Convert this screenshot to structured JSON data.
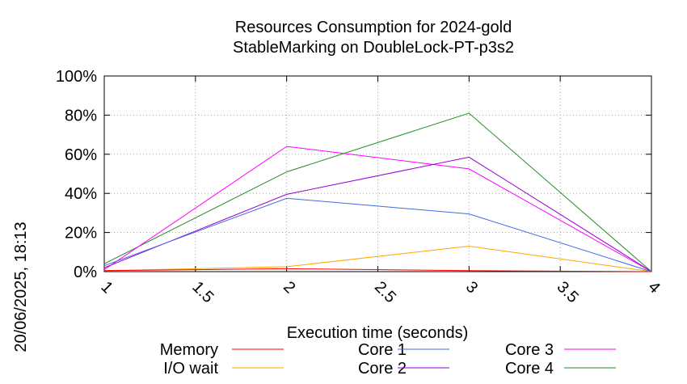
{
  "chart_data": {
    "type": "line",
    "title": "Resources Consumption for 2024-gold",
    "subtitle": "StableMarking on DoubleLock-PT-p3s2",
    "xlabel": "Execution time (seconds)",
    "side_label": "20/06/2025, 18:13",
    "xlim": [
      1,
      4
    ],
    "ylim": [
      0,
      100
    ],
    "x_ticks": [
      1,
      1.5,
      2,
      2.5,
      3,
      3.5,
      4
    ],
    "x_tick_labels": [
      "1",
      "1.5",
      "2",
      "2.5",
      "3",
      "3.5",
      "4"
    ],
    "y_ticks": [
      0,
      20,
      40,
      60,
      80,
      100
    ],
    "y_tick_labels": [
      "0%",
      "20%",
      "40%",
      "60%",
      "80%",
      "100%"
    ],
    "grid": true,
    "legend_position": "bottom",
    "series": [
      {
        "name": "Memory",
        "color": "#ff0000",
        "x": [
          1,
          2,
          3,
          4
        ],
        "values": [
          0.5,
          1.5,
          0.5,
          0
        ]
      },
      {
        "name": "I/O wait",
        "color": "#ffa500",
        "x": [
          1,
          2,
          3,
          4
        ],
        "values": [
          0.5,
          2.5,
          13,
          0
        ]
      },
      {
        "name": "Core 1",
        "color": "#4169e1",
        "x": [
          1,
          2,
          3,
          4
        ],
        "values": [
          3,
          37.5,
          29.5,
          0
        ]
      },
      {
        "name": "Core 2",
        "color": "#9400d3",
        "x": [
          1,
          2,
          3,
          4
        ],
        "values": [
          2,
          39.5,
          58.5,
          0
        ]
      },
      {
        "name": "Core 3",
        "color": "#ff00ff",
        "x": [
          1,
          2,
          3,
          4
        ],
        "values": [
          1,
          64,
          52.5,
          0
        ]
      },
      {
        "name": "Core 4",
        "color": "#228b22",
        "x": [
          1,
          2,
          3,
          4
        ],
        "values": [
          4,
          51,
          81,
          0
        ]
      }
    ]
  }
}
